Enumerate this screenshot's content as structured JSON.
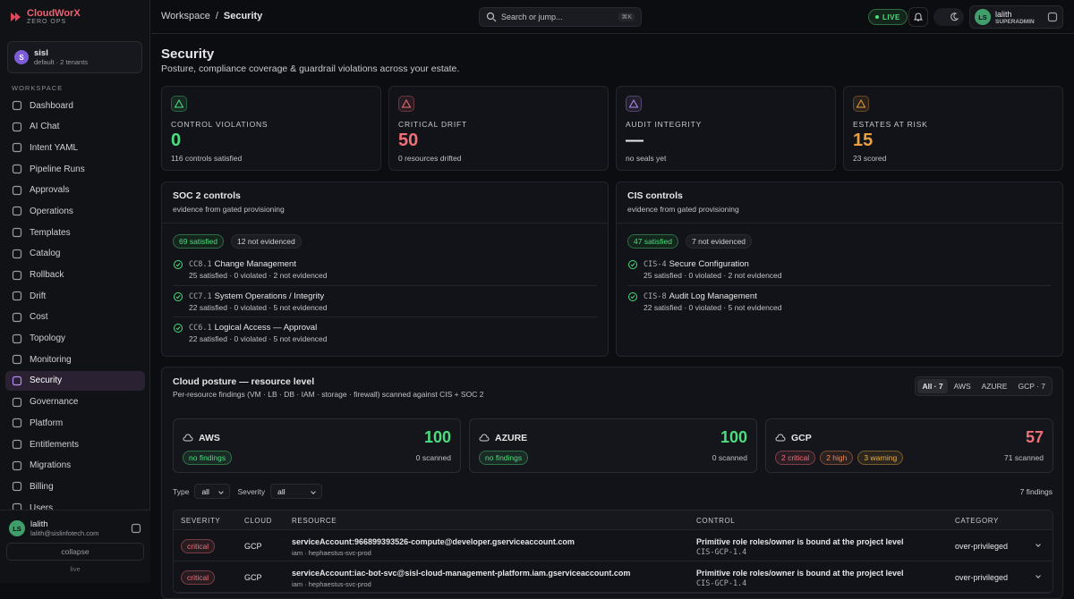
{
  "brand": {
    "name": "CloudWorX",
    "tagline": "ZERO OPS"
  },
  "tenant": {
    "initial": "S",
    "name": "sisl",
    "sub": "default · 2 tenants"
  },
  "nav": {
    "heading": "WORKSPACE",
    "items": [
      "Dashboard",
      "AI Chat",
      "Intent YAML",
      "Pipeline Runs",
      "Approvals",
      "Operations",
      "Templates",
      "Catalog",
      "Rollback",
      "Drift",
      "Cost",
      "Topology",
      "Monitoring",
      "Security",
      "Governance",
      "Platform",
      "Entitlements",
      "Migrations",
      "Billing",
      "Users"
    ],
    "active": "Security"
  },
  "sidebar_user": {
    "initials": "LS",
    "name": "lalith",
    "email": "lalith@sislinfotech.com",
    "collapse": "collapse",
    "status": "live"
  },
  "topbar": {
    "breadcrumb": [
      "Workspace",
      "/",
      "Security"
    ],
    "search": "Search or jump...",
    "shortcut": "⌘K",
    "live": "LIVE",
    "user": {
      "initials": "LS",
      "name": "lalith",
      "role": "SUPERADMIN"
    }
  },
  "page": {
    "title": "Security",
    "subtitle": "Posture, compliance coverage & guardrail violations across your estate."
  },
  "stats": [
    {
      "label": "CONTROL VIOLATIONS",
      "value": "0",
      "sub": "116 controls satisfied",
      "color": "#4ade80"
    },
    {
      "label": "CRITICAL DRIFT",
      "value": "50",
      "sub": "0 resources drifted",
      "color": "#f0707a"
    },
    {
      "label": "AUDIT INTEGRITY",
      "value": "—",
      "sub": "no seals yet",
      "color": "#e8e8ea"
    },
    {
      "label": "ESTATES AT RISK",
      "value": "15",
      "sub": "23 scored",
      "color": "#e8a040"
    }
  ],
  "frameworks": [
    {
      "title": "SOC 2 controls",
      "sub": "evidence from gated provisioning",
      "satisfied": "69 satisfied",
      "not_evidenced": "12 not evidenced",
      "controls": [
        {
          "code": "CC8.1",
          "name": "Change Management",
          "detail": "25 satisfied · 0 violated · 2 not evidenced"
        },
        {
          "code": "CC7.1",
          "name": "System Operations / Integrity",
          "detail": "22 satisfied · 0 violated · 5 not evidenced"
        },
        {
          "code": "CC6.1",
          "name": "Logical Access — Approval",
          "detail": "22 satisfied · 0 violated · 5 not evidenced"
        }
      ]
    },
    {
      "title": "CIS controls",
      "sub": "evidence from gated provisioning",
      "satisfied": "47 satisfied",
      "not_evidenced": "7 not evidenced",
      "controls": [
        {
          "code": "CIS-4",
          "name": "Secure Configuration",
          "detail": "25 satisfied · 0 violated · 2 not evidenced"
        },
        {
          "code": "CIS-8",
          "name": "Audit Log Management",
          "detail": "22 satisfied · 0 violated · 5 not evidenced"
        }
      ]
    }
  ],
  "posture": {
    "title": "Cloud posture — resource level",
    "sub": "Per-resource findings (VM · LB · DB · IAM · storage · firewall) scanned against CIS + SOC 2",
    "tabs": [
      "All · 7",
      "AWS",
      "AZURE",
      "GCP · 7"
    ],
    "clouds": [
      {
        "name": "AWS",
        "score": "100",
        "color": "#4ade80",
        "scanned": "0 scanned",
        "tags": [
          {
            "text": "no findings",
            "color": "#4ade80"
          }
        ]
      },
      {
        "name": "AZURE",
        "score": "100",
        "color": "#4ade80",
        "scanned": "0 scanned",
        "tags": [
          {
            "text": "no findings",
            "color": "#4ade80"
          }
        ]
      },
      {
        "name": "GCP",
        "score": "57",
        "color": "#f0707a",
        "scanned": "71 scanned",
        "tags": [
          {
            "text": "2 critical",
            "color": "#f0707a"
          },
          {
            "text": "2 high",
            "color": "#f08a5a"
          },
          {
            "text": "3 warning",
            "color": "#e8b040"
          }
        ]
      }
    ],
    "filters": [
      {
        "label": "Type",
        "value": "all"
      },
      {
        "label": "Severity",
        "value": "all"
      }
    ],
    "count": "7 findings",
    "columns": [
      "SEVERITY",
      "CLOUD",
      "RESOURCE",
      "CONTROL",
      "CATEGORY"
    ],
    "rows": [
      {
        "severity": "critical",
        "cloud": "GCP",
        "resource": "serviceAccount:966899393526-compute@developer.gserviceaccount.com",
        "resource_sub": "iam · hephaestus-svc-prod",
        "control": "Primitive role roles/owner is bound at the project level",
        "control_id": "CIS-GCP-1.4",
        "category": "over-privileged"
      },
      {
        "severity": "critical",
        "cloud": "GCP",
        "resource": "serviceAccount:iac-bot-svc@sisl-cloud-management-platform.iam.gserviceaccount.com",
        "resource_sub": "iam · hephaestus-svc-prod",
        "control": "Primitive role roles/owner is bound at the project level",
        "control_id": "CIS-GCP-1.4",
        "category": "over-privileged"
      }
    ]
  }
}
